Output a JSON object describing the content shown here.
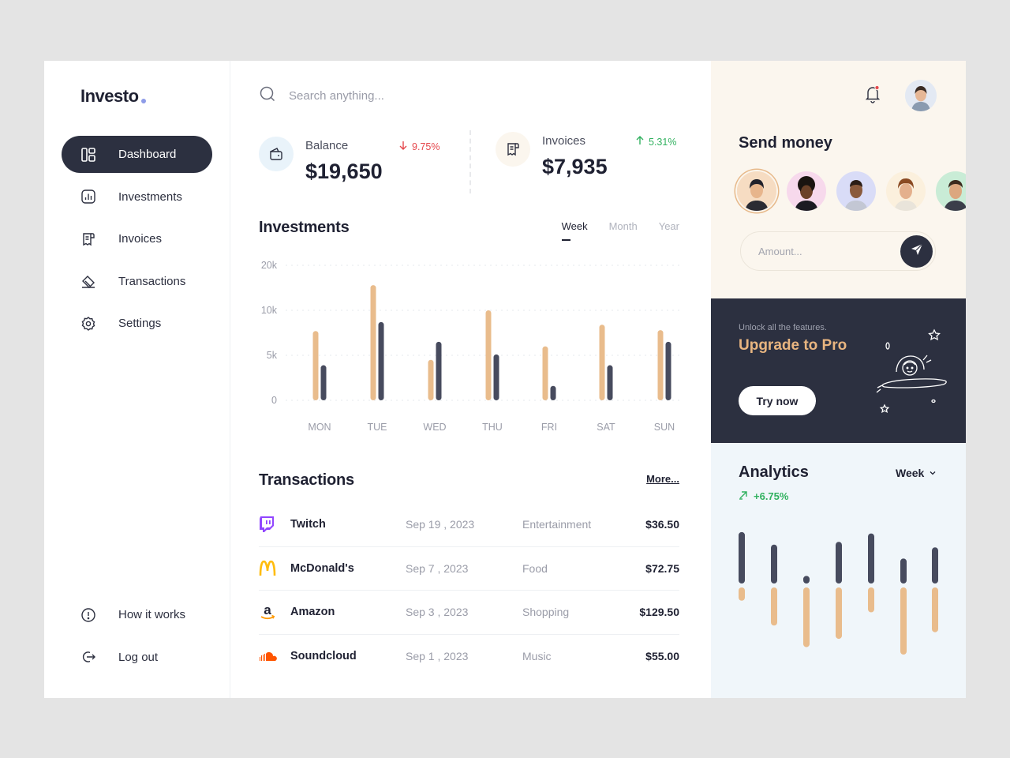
{
  "brand": {
    "name": "Investo"
  },
  "sidebar": {
    "items": [
      {
        "label": "Dashboard",
        "icon": "dashboard-icon",
        "active": true
      },
      {
        "label": "Investments",
        "icon": "chart-icon"
      },
      {
        "label": "Invoices",
        "icon": "invoice-icon"
      },
      {
        "label": "Transactions",
        "icon": "transactions-icon"
      },
      {
        "label": "Settings",
        "icon": "gear-icon"
      }
    ],
    "bottom": [
      {
        "label": "How it works",
        "icon": "info-icon"
      },
      {
        "label": "Log out",
        "icon": "logout-icon"
      }
    ]
  },
  "search": {
    "placeholder": "Search anything..."
  },
  "stats": {
    "balance": {
      "label": "Balance",
      "value": "$19,650",
      "change": "9.75%",
      "direction": "down"
    },
    "invoices": {
      "label": "Invoices",
      "value": "$7,935",
      "change": "5.31%",
      "direction": "up"
    }
  },
  "investments": {
    "title": "Investments",
    "tabs": [
      "Week",
      "Month",
      "Year"
    ],
    "active_tab": "Week"
  },
  "chart_data": {
    "type": "bar",
    "categories": [
      "MON",
      "TUE",
      "WED",
      "THU",
      "FRI",
      "SAT",
      "SUN"
    ],
    "series": [
      {
        "values": [
          7700,
          12800,
          4500,
          10000,
          6000,
          8400,
          7800
        ]
      },
      {
        "values": [
          3900,
          8700,
          6500,
          5100,
          1600,
          3900,
          6500
        ]
      }
    ],
    "yticks": [
      "0",
      "5k",
      "10k",
      "20k"
    ],
    "ylim": [
      0,
      15000
    ],
    "grid": true,
    "colors": {
      "series_1": "#e9bc8c",
      "series_2": "#474b5e"
    }
  },
  "transactions": {
    "title": "Transactions",
    "more_label": "More...",
    "rows": [
      {
        "name": "Twitch",
        "date": "Sep 19 , 2023",
        "category": "Entertainment",
        "amount": "$36.50",
        "icon": "twitch-icon"
      },
      {
        "name": "McDonald's",
        "date": "Sep 7 , 2023",
        "category": "Food",
        "amount": "$72.75",
        "icon": "mcdonalds-icon"
      },
      {
        "name": "Amazon",
        "date": "Sep 3 , 2023",
        "category": "Shopping",
        "amount": "$129.50",
        "icon": "amazon-icon"
      },
      {
        "name": "Soundcloud",
        "date": "Sep 1 , 2023",
        "category": "Music",
        "amount": "$55.00",
        "icon": "soundcloud-icon"
      }
    ]
  },
  "send_money": {
    "title": "Send money",
    "amount_placeholder": "Amount...",
    "contacts": [
      "contact-1",
      "contact-2",
      "contact-3",
      "contact-4",
      "contact-5"
    ]
  },
  "upgrade": {
    "subtitle": "Unlock all the features.",
    "title": "Upgrade to Pro",
    "button_label": "Try now"
  },
  "analytics": {
    "title": "Analytics",
    "period": "Week",
    "change": "+6.75%",
    "bars": [
      {
        "top": 0.74,
        "bottom": 0.16
      },
      {
        "top": 0.56,
        "bottom": 0.46
      },
      {
        "top": 0.11,
        "bottom": 0.72
      },
      {
        "top": 0.6,
        "bottom": 0.62
      },
      {
        "top": 0.72,
        "bottom": 0.3
      },
      {
        "top": 0.36,
        "bottom": 0.81
      },
      {
        "top": 0.52,
        "bottom": 0.54
      }
    ]
  },
  "colors": {
    "accent": "#e9bc8c",
    "dark": "#2c3040",
    "up": "#31b15f",
    "down": "#e5484d"
  }
}
